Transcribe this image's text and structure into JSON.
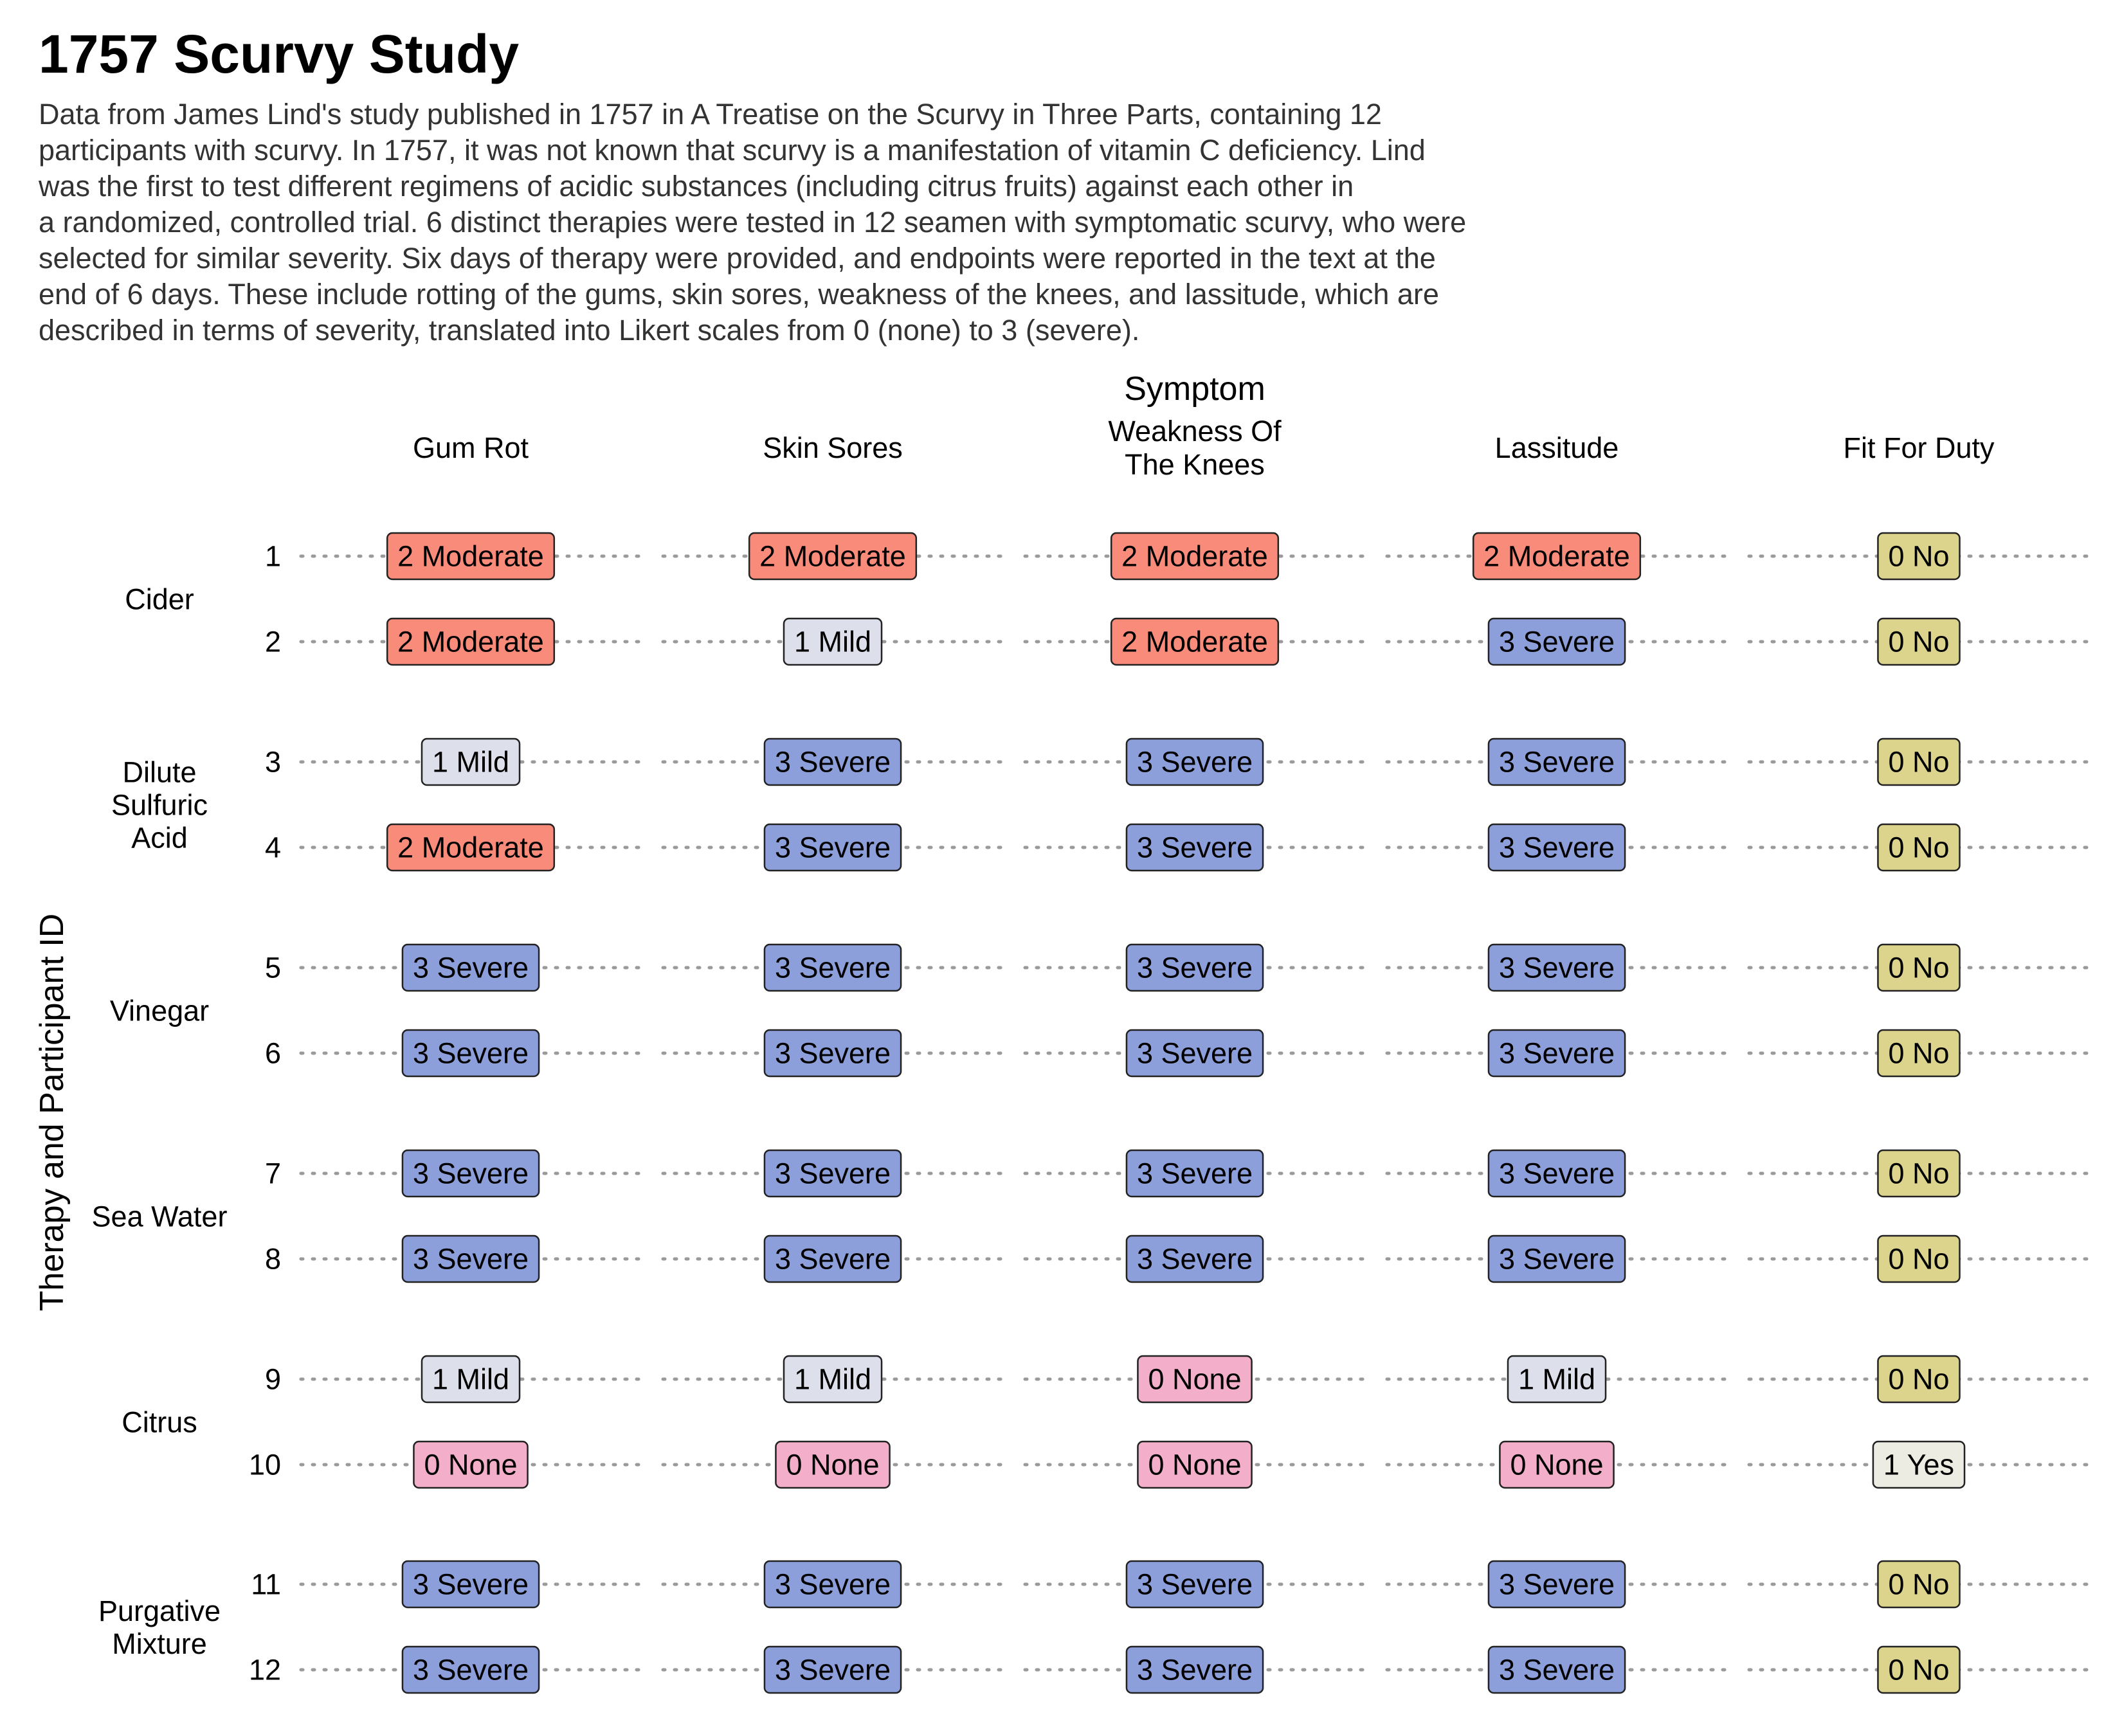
{
  "colors": {
    "moderate": "#F98B7A",
    "mild": "#DDE0EA",
    "severe": "#8D9FDB",
    "none": "#F3AFC9",
    "no": "#DCD48C",
    "yes": "#EDECE3",
    "dots": "#9A9A9A"
  },
  "chart_data": {
    "type": "table",
    "title": "1757 Scurvy Study",
    "subtitle": "Data from James Lind's study published in 1757 in A Treatise on the Scurvy in Three Parts, containing 12\nparticipants with scurvy. In 1757, it was not known that scurvy is a manifestation of vitamin C deficiency. Lind\nwas the first to test different regimens of acidic substances (including citrus fruits) against each other in\na randomized, controlled trial. 6 distinct therapies were tested in 12 seamen with symptomatic scurvy, who were\nselected for similar severity. Six days of therapy were provided, and endpoints were reported in the text at the\nend of 6 days. These include rotting of the gums, skin sores, weakness of the knees, and lassitude, which are\ndescribed in terms of severity, translated into Likert scales from 0 (none) to 3 (severe).",
    "xlabel": "Symptom",
    "ylabel": "Therapy and Participant ID",
    "columns": [
      "Gum Rot",
      "Skin Sores",
      "Weakness Of\nThe Knees",
      "Lassitude",
      "Fit For Duty"
    ],
    "groups": [
      {
        "therapy": "Cider",
        "rows": [
          {
            "id": "1",
            "values": [
              "2 Moderate",
              "2 Moderate",
              "2 Moderate",
              "2 Moderate",
              "0 No"
            ]
          },
          {
            "id": "2",
            "values": [
              "2 Moderate",
              "1 Mild",
              "2 Moderate",
              "3 Severe",
              "0 No"
            ]
          }
        ]
      },
      {
        "therapy": "Dilute\nSulfuric\nAcid",
        "rows": [
          {
            "id": "3",
            "values": [
              "1 Mild",
              "3 Severe",
              "3 Severe",
              "3 Severe",
              "0 No"
            ]
          },
          {
            "id": "4",
            "values": [
              "2 Moderate",
              "3 Severe",
              "3 Severe",
              "3 Severe",
              "0 No"
            ]
          }
        ]
      },
      {
        "therapy": "Vinegar",
        "rows": [
          {
            "id": "5",
            "values": [
              "3 Severe",
              "3 Severe",
              "3 Severe",
              "3 Severe",
              "0 No"
            ]
          },
          {
            "id": "6",
            "values": [
              "3 Severe",
              "3 Severe",
              "3 Severe",
              "3 Severe",
              "0 No"
            ]
          }
        ]
      },
      {
        "therapy": "Sea Water",
        "rows": [
          {
            "id": "7",
            "values": [
              "3 Severe",
              "3 Severe",
              "3 Severe",
              "3 Severe",
              "0 No"
            ]
          },
          {
            "id": "8",
            "values": [
              "3 Severe",
              "3 Severe",
              "3 Severe",
              "3 Severe",
              "0 No"
            ]
          }
        ]
      },
      {
        "therapy": "Citrus",
        "rows": [
          {
            "id": "9",
            "values": [
              "1 Mild",
              "1 Mild",
              "0 None",
              "1 Mild",
              "0 No"
            ]
          },
          {
            "id": "10",
            "values": [
              "0 None",
              "0 None",
              "0 None",
              "0 None",
              "1 Yes"
            ]
          }
        ]
      },
      {
        "therapy": "Purgative\nMixture",
        "rows": [
          {
            "id": "11",
            "values": [
              "3 Severe",
              "3 Severe",
              "3 Severe",
              "3 Severe",
              "0 No"
            ]
          },
          {
            "id": "12",
            "values": [
              "3 Severe",
              "3 Severe",
              "3 Severe",
              "3 Severe",
              "0 No"
            ]
          }
        ]
      }
    ]
  }
}
